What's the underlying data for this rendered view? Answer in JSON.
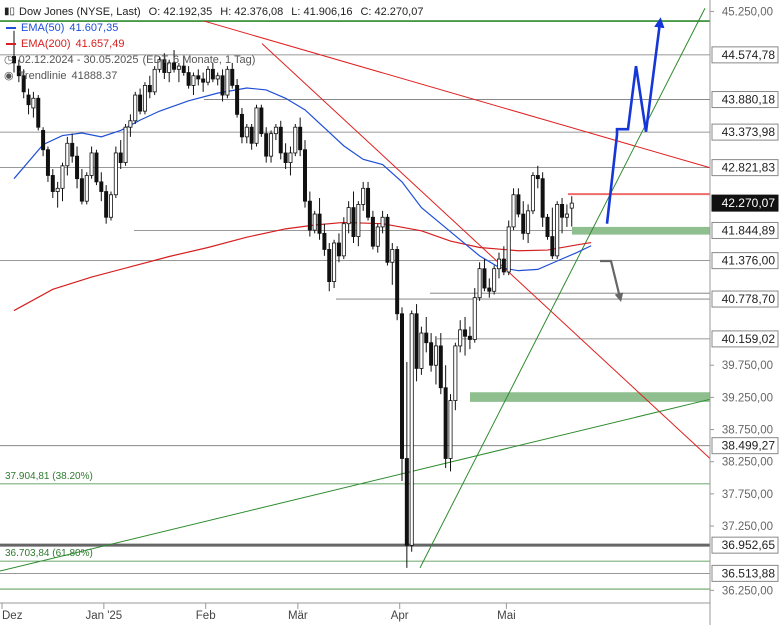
{
  "chart_data": {
    "type": "candlestick",
    "instrument": "Dow Jones (NYSE, Last)",
    "ohlc_label": {
      "o": "O: 42.192,35",
      "h": "H: 42.376,08",
      "l": "L: 41.906,16",
      "c": "C: 42.270,07"
    },
    "range_text": "02.12.2024 - 30.05.2025",
    "period_text": "(EDT, 6 Monate, 1 Tag)",
    "ylim": [
      36100,
      45350
    ],
    "x_ticks": [
      {
        "label": "Dez",
        "bar": 0
      },
      {
        "label": "Jan '25",
        "bar": 21
      },
      {
        "label": "Feb",
        "bar": 42
      },
      {
        "label": "Mär",
        "bar": 61
      },
      {
        "label": "Apr",
        "bar": 82
      },
      {
        "label": "Mai",
        "bar": 104
      }
    ],
    "y_ticks": [
      45250,
      39750,
      39250,
      38750,
      38250,
      37750,
      37250,
      36250
    ],
    "y_tick_labels": [
      "45.250,00",
      "39.750,00",
      "39.250,00",
      "38.750,00",
      "38.250,00",
      "37.750,00",
      "37.250,00",
      "36.250,00"
    ],
    "price_levels": [
      {
        "value": 44574.78,
        "label": "44.574,78"
      },
      {
        "value": 43880.18,
        "label": "43.880,18"
      },
      {
        "value": 43373.98,
        "label": "43.373,98"
      },
      {
        "value": 42821.83,
        "label": "42.821,83"
      },
      {
        "value": 41844.89,
        "label": "41.844,89"
      },
      {
        "value": 41376.0,
        "label": "41.376,00"
      },
      {
        "value": 40778.7,
        "label": "40.778,70"
      },
      {
        "value": 40159.02,
        "label": "40.159,02"
      },
      {
        "value": 38499.27,
        "label": "38.499,27"
      },
      {
        "value": 36952.65,
        "label": "36.952,65"
      },
      {
        "value": 36513.88,
        "label": "36.513,88"
      }
    ],
    "current_price": {
      "value": 42270.07,
      "label": "42.270,07"
    },
    "fib_levels": [
      {
        "value": 37904.81,
        "label": "37.904,81 (38.20%)"
      },
      {
        "value": 36703.84,
        "label": "36.703,84 (61.80%)"
      }
    ],
    "ema50": {
      "name": "EMA(50)",
      "value_label": "41.607,35",
      "color": "#1f4fd6",
      "values": [
        [
          0,
          42650
        ],
        [
          6,
          43180
        ],
        [
          10,
          43320
        ],
        [
          14,
          43360
        ],
        [
          18,
          43300
        ],
        [
          22,
          43400
        ],
        [
          26,
          43560
        ],
        [
          30,
          43700
        ],
        [
          36,
          43860
        ],
        [
          42,
          43980
        ],
        [
          48,
          44060
        ],
        [
          52,
          44030
        ],
        [
          56,
          43900
        ],
        [
          60,
          43720
        ],
        [
          64,
          43440
        ],
        [
          68,
          43160
        ],
        [
          72,
          42950
        ],
        [
          76,
          42870
        ],
        [
          80,
          42600
        ],
        [
          84,
          42200
        ],
        [
          88,
          41950
        ],
        [
          92,
          41700
        ],
        [
          96,
          41450
        ],
        [
          100,
          41270
        ],
        [
          104,
          41220
        ],
        [
          108,
          41240
        ],
        [
          112,
          41370
        ],
        [
          116,
          41500
        ],
        [
          119,
          41607
        ]
      ]
    },
    "ema200": {
      "name": "EMA(200)",
      "value_label": "41.657,49",
      "color": "#d62020",
      "values": [
        [
          0,
          40600
        ],
        [
          8,
          40930
        ],
        [
          16,
          41120
        ],
        [
          24,
          41280
        ],
        [
          32,
          41440
        ],
        [
          40,
          41580
        ],
        [
          48,
          41740
        ],
        [
          56,
          41870
        ],
        [
          62,
          41930
        ],
        [
          68,
          41970
        ],
        [
          76,
          41950
        ],
        [
          84,
          41840
        ],
        [
          90,
          41680
        ],
        [
          96,
          41580
        ],
        [
          104,
          41530
        ],
        [
          110,
          41540
        ],
        [
          116,
          41620
        ],
        [
          119,
          41657
        ]
      ]
    },
    "trendline": {
      "label": "Trendlinie",
      "value_label": "41888.37"
    },
    "candles": [
      [
        44550,
        44950,
        44300,
        44450
      ],
      [
        44400,
        44500,
        44150,
        44250
      ],
      [
        44250,
        44350,
        43900,
        44000
      ],
      [
        43950,
        44050,
        43650,
        43800
      ],
      [
        43750,
        44000,
        43600,
        43900
      ],
      [
        43900,
        43950,
        43400,
        43450
      ],
      [
        43400,
        43450,
        43000,
        43100
      ],
      [
        43100,
        43150,
        42600,
        42700
      ],
      [
        42700,
        42800,
        42350,
        42450
      ],
      [
        42450,
        42600,
        42200,
        42500
      ],
      [
        42500,
        42900,
        42300,
        42850
      ],
      [
        42850,
        43300,
        42700,
        43200
      ],
      [
        43200,
        43350,
        42900,
        43000
      ],
      [
        43000,
        43150,
        42500,
        42650
      ],
      [
        42650,
        42800,
        42250,
        42300
      ],
      [
        42300,
        42750,
        42250,
        42700
      ],
      [
        42700,
        43150,
        42650,
        43050
      ],
      [
        43050,
        43100,
        42550,
        42600
      ],
      [
        42600,
        42750,
        42300,
        42450
      ],
      [
        42450,
        42550,
        41950,
        42050
      ],
      [
        42050,
        42450,
        42000,
        42400
      ],
      [
        42400,
        43150,
        42350,
        43050
      ],
      [
        43050,
        43250,
        42800,
        42900
      ],
      [
        42900,
        43500,
        42850,
        43450
      ],
      [
        43450,
        43650,
        43300,
        43550
      ],
      [
        43550,
        44000,
        43500,
        43950
      ],
      [
        43950,
        44050,
        43650,
        43700
      ],
      [
        43700,
        44150,
        43650,
        44100
      ],
      [
        44100,
        44250,
        43900,
        44000
      ],
      [
        44000,
        44400,
        43950,
        44350
      ],
      [
        44350,
        44550,
        44300,
        44500
      ],
      [
        44500,
        44600,
        44200,
        44300
      ],
      [
        44300,
        44500,
        44150,
        44450
      ],
      [
        44450,
        44650,
        44300,
        44350
      ],
      [
        44350,
        44450,
        44150,
        44400
      ],
      [
        44400,
        44550,
        44250,
        44300
      ],
      [
        44300,
        44400,
        44050,
        44100
      ],
      [
        44100,
        44300,
        43950,
        44250
      ],
      [
        44250,
        44350,
        44100,
        44200
      ],
      [
        44200,
        44300,
        44000,
        44150
      ],
      [
        44150,
        44400,
        44100,
        44350
      ],
      [
        44350,
        44450,
        44150,
        44200
      ],
      [
        44200,
        44300,
        44100,
        44250
      ],
      [
        44250,
        44350,
        43850,
        43950
      ],
      [
        43950,
        44400,
        43900,
        44350
      ],
      [
        44350,
        44450,
        44050,
        44100
      ],
      [
        44100,
        44200,
        43600,
        43650
      ],
      [
        43650,
        43750,
        43200,
        43300
      ],
      [
        43300,
        43500,
        43200,
        43450
      ],
      [
        43450,
        43500,
        43100,
        43200
      ],
      [
        43200,
        43800,
        43150,
        43750
      ],
      [
        43750,
        43800,
        43300,
        43350
      ],
      [
        43350,
        43450,
        42900,
        43000
      ],
      [
        43000,
        43400,
        42900,
        43350
      ],
      [
        43350,
        43500,
        43250,
        43450
      ],
      [
        43450,
        43550,
        42950,
        43050
      ],
      [
        43050,
        43200,
        42800,
        42900
      ],
      [
        42900,
        43150,
        42700,
        43050
      ],
      [
        43050,
        43500,
        43000,
        43450
      ],
      [
        43450,
        43600,
        43000,
        43100
      ],
      [
        43100,
        43250,
        42200,
        42300
      ],
      [
        42300,
        42450,
        41750,
        41850
      ],
      [
        41850,
        42150,
        41800,
        42100
      ],
      [
        42100,
        42350,
        41700,
        41800
      ],
      [
        41800,
        41950,
        41450,
        41550
      ],
      [
        41550,
        41650,
        40900,
        41050
      ],
      [
        41050,
        41700,
        40950,
        41650
      ],
      [
        41650,
        41800,
        41350,
        41450
      ],
      [
        41450,
        42050,
        41400,
        41950
      ],
      [
        41950,
        42300,
        41800,
        42200
      ],
      [
        42200,
        42450,
        41650,
        41750
      ],
      [
        41750,
        42300,
        41600,
        42250
      ],
      [
        42250,
        42600,
        42150,
        42500
      ],
      [
        42500,
        42600,
        42000,
        42050
      ],
      [
        42050,
        42150,
        41550,
        41600
      ],
      [
        41600,
        41950,
        41500,
        41900
      ],
      [
        41900,
        42150,
        41800,
        42050
      ],
      [
        42050,
        42100,
        41300,
        41350
      ],
      [
        41350,
        41650,
        41000,
        41550
      ],
      [
        41550,
        41600,
        40450,
        40550
      ],
      [
        40550,
        40650,
        37950,
        38300
      ],
      [
        38300,
        39800,
        36600,
        36950
      ],
      [
        36950,
        40600,
        36850,
        40550
      ],
      [
        40550,
        40700,
        39500,
        39700
      ],
      [
        39700,
        40350,
        39600,
        40250
      ],
      [
        40250,
        40500,
        39950,
        40100
      ],
      [
        40100,
        40250,
        39650,
        39750
      ],
      [
        39750,
        40200,
        39450,
        40050
      ],
      [
        40050,
        40250,
        39300,
        39400
      ],
      [
        39400,
        39750,
        38150,
        38300
      ],
      [
        38300,
        39300,
        38100,
        39200
      ],
      [
        39200,
        40100,
        39050,
        40050
      ],
      [
        40050,
        40450,
        39950,
        40300
      ],
      [
        40300,
        40500,
        39900,
        40200
      ],
      [
        40200,
        40350,
        40000,
        40150
      ],
      [
        40150,
        40950,
        40100,
        40800
      ],
      [
        40800,
        41350,
        40750,
        41250
      ],
      [
        41250,
        41400,
        40900,
        40950
      ],
      [
        40950,
        41100,
        40800,
        40900
      ],
      [
        40900,
        41300,
        40850,
        41250
      ],
      [
        41250,
        41500,
        41100,
        41400
      ],
      [
        41400,
        41600,
        41150,
        41200
      ],
      [
        41200,
        42000,
        41150,
        41900
      ],
      [
        41900,
        42500,
        41850,
        42400
      ],
      [
        42400,
        42500,
        42050,
        42100
      ],
      [
        42100,
        42300,
        41700,
        41800
      ],
      [
        41800,
        42250,
        41650,
        42150
      ],
      [
        42150,
        42750,
        42100,
        42700
      ],
      [
        42700,
        42850,
        42500,
        42650
      ],
      [
        42650,
        42750,
        41900,
        42050
      ],
      [
        42050,
        42100,
        41700,
        41750
      ],
      [
        41750,
        42200,
        41400,
        41450
      ],
      [
        41450,
        42300,
        41400,
        42250
      ],
      [
        42250,
        42350,
        41800,
        42050
      ],
      [
        42050,
        42250,
        41900,
        42100
      ],
      [
        42192,
        42376,
        41906,
        42270
      ]
    ]
  }
}
